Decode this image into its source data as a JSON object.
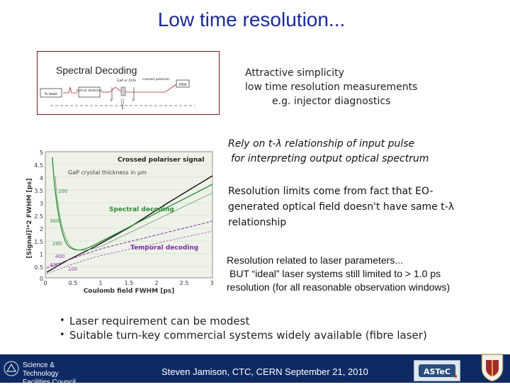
{
  "title": "Low time resolution...",
  "diagram": {
    "label": "Spectral Decoding",
    "labels": [
      "fs laser",
      "optical stretcher",
      "GaP or ZnTe",
      "crossed polariser",
      "P",
      "P",
      "OSA"
    ]
  },
  "notes": {
    "simplicity": [
      "Attractive simplicity",
      "low time resolution measurements",
      "e.g. injector  diagnostics"
    ],
    "relation_line1": "Rely on t-λ relationship of input pulse",
    "relation_line2": "for interpreting output optical spectrum",
    "resolution_limits": "Resolution limits come from fact that EO-generated optical field doesn't have same t-λ relationship",
    "laser_params": [
      "Resolution related to laser parameters...",
      "BUT “ideal” laser systems still limited to > 1.0 ps",
      "resolution   (for all reasonable observation windows)"
    ]
  },
  "bullets": [
    "Laser requirement can be modest",
    "Suitable turn-key commercial systems widely available (fibre laser)"
  ],
  "footer": {
    "stfc_line1": "Science & Technology",
    "stfc_line2": "Facilities Council",
    "text": "Steven Jamison, CTC, CERN September 21, 2010",
    "astec": "ASTeC"
  },
  "graph": {
    "ylabel": "[Signal]¹ᵄ2 FWHM [ps]",
    "xlabel": "Coulomb field FWHM [ps]",
    "yticks": [
      "5",
      "4.5",
      "4",
      "3.5",
      "3",
      "2.5",
      "2",
      "1.5",
      "1",
      "0.5",
      "0"
    ],
    "xticks": [
      "0",
      "0.5",
      "1",
      "1.5",
      "2",
      "2.5",
      "3"
    ],
    "crossed_label": "Crossed polariser signal",
    "gap_label": "GaP crystal thickness in μm",
    "spectral_label": "Spectral decoding",
    "temporal_label": "Temporal decoding",
    "thickness_labels": [
      "100",
      "200",
      "300",
      "400",
      "400",
      "100"
    ]
  }
}
